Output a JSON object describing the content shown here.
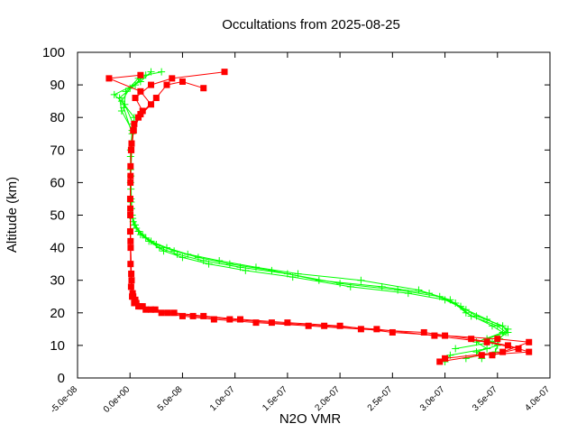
{
  "chart_data": {
    "type": "scatter",
    "title": "Occultations from 2025-08-25",
    "xlabel": "N2O VMR",
    "ylabel": "Altitude (km)",
    "xlim": [
      -5e-08,
      4e-07
    ],
    "ylim": [
      0,
      100
    ],
    "x_ticks": [
      -5e-08,
      0,
      5e-08,
      1e-07,
      1.5e-07,
      2e-07,
      2.5e-07,
      3e-07,
      3.5e-07,
      4e-07
    ],
    "x_tick_labels": [
      "-5.0e-08",
      "0.0e+00",
      "5.0e-08",
      "1.0e-07",
      "1.5e-07",
      "2.0e-07",
      "2.5e-07",
      "3.0e-07",
      "3.5e-07",
      "4.0e-07"
    ],
    "y_ticks": [
      0,
      10,
      20,
      30,
      40,
      50,
      60,
      70,
      80,
      90,
      100
    ],
    "y_tick_labels": [
      "0",
      "10",
      "20",
      "30",
      "40",
      "50",
      "60",
      "70",
      "80",
      "90",
      "100"
    ],
    "grid": false,
    "legend": "none",
    "series": [
      {
        "marker": "plus",
        "color": "#00ff00",
        "profiles": [
          [
            [
              3e-07,
              5
            ],
            [
              3.05e-07,
              7
            ],
            [
              3.4e-07,
              9
            ],
            [
              3.3e-07,
              11
            ],
            [
              3.55e-07,
              14
            ],
            [
              3.45e-07,
              16
            ],
            [
              3.2e-07,
              20
            ],
            [
              3.05e-07,
              24
            ],
            [
              2.75e-07,
              27
            ],
            [
              2.2e-07,
              30
            ],
            [
              1.6e-07,
              32
            ],
            [
              1.2e-07,
              34
            ],
            [
              8.5e-08,
              36
            ],
            [
              5.5e-08,
              38
            ],
            [
              3.5e-08,
              40
            ],
            [
              2e-08,
              42
            ],
            [
              1e-08,
              44
            ],
            [
              4e-09,
              47
            ],
            [
              2e-09,
              50
            ],
            [
              1e-09,
              55
            ],
            [
              5e-10,
              60
            ],
            [
              5e-10,
              70
            ],
            [
              2e-09,
              76
            ],
            [
              -8e-09,
              82
            ],
            [
              -1e-08,
              86
            ],
            [
              5e-09,
              90
            ],
            [
              1e-08,
              92
            ]
          ],
          [
            [
              3.35e-07,
              6
            ],
            [
              3.3e-07,
              8
            ],
            [
              3.5e-07,
              10
            ],
            [
              3.4e-07,
              12
            ],
            [
              3.58e-07,
              14
            ],
            [
              3.5e-07,
              16
            ],
            [
              3.25e-07,
              19
            ],
            [
              3.1e-07,
              23
            ],
            [
              2.85e-07,
              26
            ],
            [
              2.4e-07,
              28
            ],
            [
              1.8e-07,
              30
            ],
            [
              1.35e-07,
              33
            ],
            [
              9.5e-08,
              35
            ],
            [
              6.5e-08,
              37
            ],
            [
              4.2e-08,
              39
            ],
            [
              2.5e-08,
              41
            ],
            [
              1.2e-08,
              44
            ],
            [
              5e-09,
              47
            ],
            [
              2e-09,
              50
            ],
            [
              8e-10,
              58
            ],
            [
              5e-10,
              68
            ],
            [
              3e-09,
              78
            ],
            [
              -5e-09,
              84
            ],
            [
              -1.5e-08,
              87
            ],
            [
              1e-08,
              91
            ],
            [
              2e-08,
              94
            ]
          ],
          [
            [
              3.1e-07,
              9
            ],
            [
              3.45e-07,
              11
            ],
            [
              3.6e-07,
              14
            ],
            [
              3.55e-07,
              16
            ],
            [
              3.3e-07,
              19
            ],
            [
              3.15e-07,
              22
            ],
            [
              2.95e-07,
              25
            ],
            [
              2.55e-07,
              27
            ],
            [
              2e-07,
              29
            ],
            [
              1.5e-07,
              32
            ],
            [
              1.05e-07,
              34
            ],
            [
              7e-08,
              36
            ],
            [
              4.5e-08,
              38
            ],
            [
              2.8e-08,
              40
            ],
            [
              1.5e-08,
              43
            ],
            [
              6e-09,
              46
            ],
            [
              2.5e-09,
              49
            ],
            [
              1e-09,
              54
            ],
            [
              5e-10,
              64
            ],
            [
              4e-09,
              80
            ],
            [
              -8e-09,
              85
            ],
            [
              0,
              89
            ],
            [
              1.5e-08,
              93
            ],
            [
              3e-08,
              94
            ]
          ],
          [
            [
              3.2e-07,
              6
            ],
            [
              3.48e-07,
              8
            ],
            [
              3.52e-07,
              12
            ],
            [
              3.6e-07,
              15
            ],
            [
              3.4e-07,
              18
            ],
            [
              3.2e-07,
              21
            ],
            [
              3e-07,
              24
            ],
            [
              2.65e-07,
              26
            ],
            [
              2.1e-07,
              28
            ],
            [
              1.55e-07,
              31
            ],
            [
              1.1e-07,
              33
            ],
            [
              7.5e-08,
              35
            ],
            [
              5e-08,
              37
            ],
            [
              3.2e-08,
              39
            ],
            [
              1.8e-08,
              42
            ],
            [
              8e-09,
              45
            ],
            [
              3e-09,
              48
            ],
            [
              1.5e-09,
              52
            ],
            [
              8e-10,
              62
            ],
            [
              2e-09,
              75
            ],
            [
              -6e-09,
              83
            ],
            [
              -4e-09,
              88
            ],
            [
              8e-09,
              92
            ]
          ]
        ]
      },
      {
        "marker": "square",
        "color": "#ff0000",
        "profiles": [
          [
            [
              2.95e-07,
              5
            ],
            [
              3.35e-07,
              7
            ],
            [
              3.8e-07,
              8
            ],
            [
              3.6e-07,
              10
            ],
            [
              3.25e-07,
              12
            ],
            [
              2.8e-07,
              14
            ],
            [
              2.2e-07,
              15
            ],
            [
              1.7e-07,
              16
            ],
            [
              1.2e-07,
              17
            ],
            [
              8e-08,
              18
            ],
            [
              5e-08,
              19
            ],
            [
              3e-08,
              20
            ],
            [
              1.5e-08,
              21
            ],
            [
              8e-09,
              22
            ],
            [
              4e-09,
              23
            ],
            [
              2e-09,
              25
            ],
            [
              1e-09,
              28
            ],
            [
              5e-10,
              35
            ],
            [
              2e-10,
              45
            ],
            [
              2e-10,
              55
            ],
            [
              5e-10,
              65
            ],
            [
              1.5e-09,
              72
            ],
            [
              4e-09,
              78
            ],
            [
              1.2e-08,
              82
            ],
            [
              5e-09,
              86
            ],
            [
              2e-08,
              90
            ],
            [
              4e-08,
              92
            ],
            [
              9e-08,
              94
            ]
          ],
          [
            [
              3e-07,
              6
            ],
            [
              3.55e-07,
              8
            ],
            [
              3.8e-07,
              11
            ],
            [
              3.5e-07,
              12
            ],
            [
              3e-07,
              13
            ],
            [
              2.5e-07,
              14
            ],
            [
              2e-07,
              16
            ],
            [
              1.5e-07,
              17
            ],
            [
              1.05e-07,
              18
            ],
            [
              7e-08,
              19
            ],
            [
              4.2e-08,
              20
            ],
            [
              2.4e-08,
              21
            ],
            [
              1.2e-08,
              22
            ],
            [
              6e-09,
              23
            ],
            [
              3e-09,
              25
            ],
            [
              1.5e-09,
              30
            ],
            [
              6e-10,
              40
            ],
            [
              3e-10,
              50
            ],
            [
              4e-10,
              60
            ],
            [
              1e-09,
              70
            ],
            [
              3e-09,
              76
            ],
            [
              8e-09,
              80
            ],
            [
              2e-08,
              84
            ],
            [
              1e-08,
              88
            ],
            [
              -2e-08,
              92
            ],
            [
              1e-08,
              93
            ]
          ],
          [
            [
              3.45e-07,
              7
            ],
            [
              3.7e-07,
              9
            ],
            [
              3.4e-07,
              11
            ],
            [
              2.9e-07,
              13
            ],
            [
              2.35e-07,
              15
            ],
            [
              1.85e-07,
              16
            ],
            [
              1.35e-07,
              17
            ],
            [
              9.5e-08,
              18
            ],
            [
              6e-08,
              19
            ],
            [
              3.6e-08,
              20
            ],
            [
              2e-08,
              21
            ],
            [
              1e-08,
              22
            ],
            [
              5e-09,
              24
            ],
            [
              2.5e-09,
              26
            ],
            [
              1.2e-09,
              32
            ],
            [
              5e-10,
              42
            ],
            [
              3e-10,
              52
            ],
            [
              5e-10,
              62
            ],
            [
              1.2e-09,
              70
            ],
            [
              3.5e-09,
              76
            ],
            [
              1e-08,
              81
            ],
            [
              2.5e-08,
              86
            ],
            [
              3.5e-08,
              90
            ],
            [
              5e-08,
              91
            ],
            [
              7e-08,
              89
            ]
          ]
        ]
      }
    ]
  }
}
